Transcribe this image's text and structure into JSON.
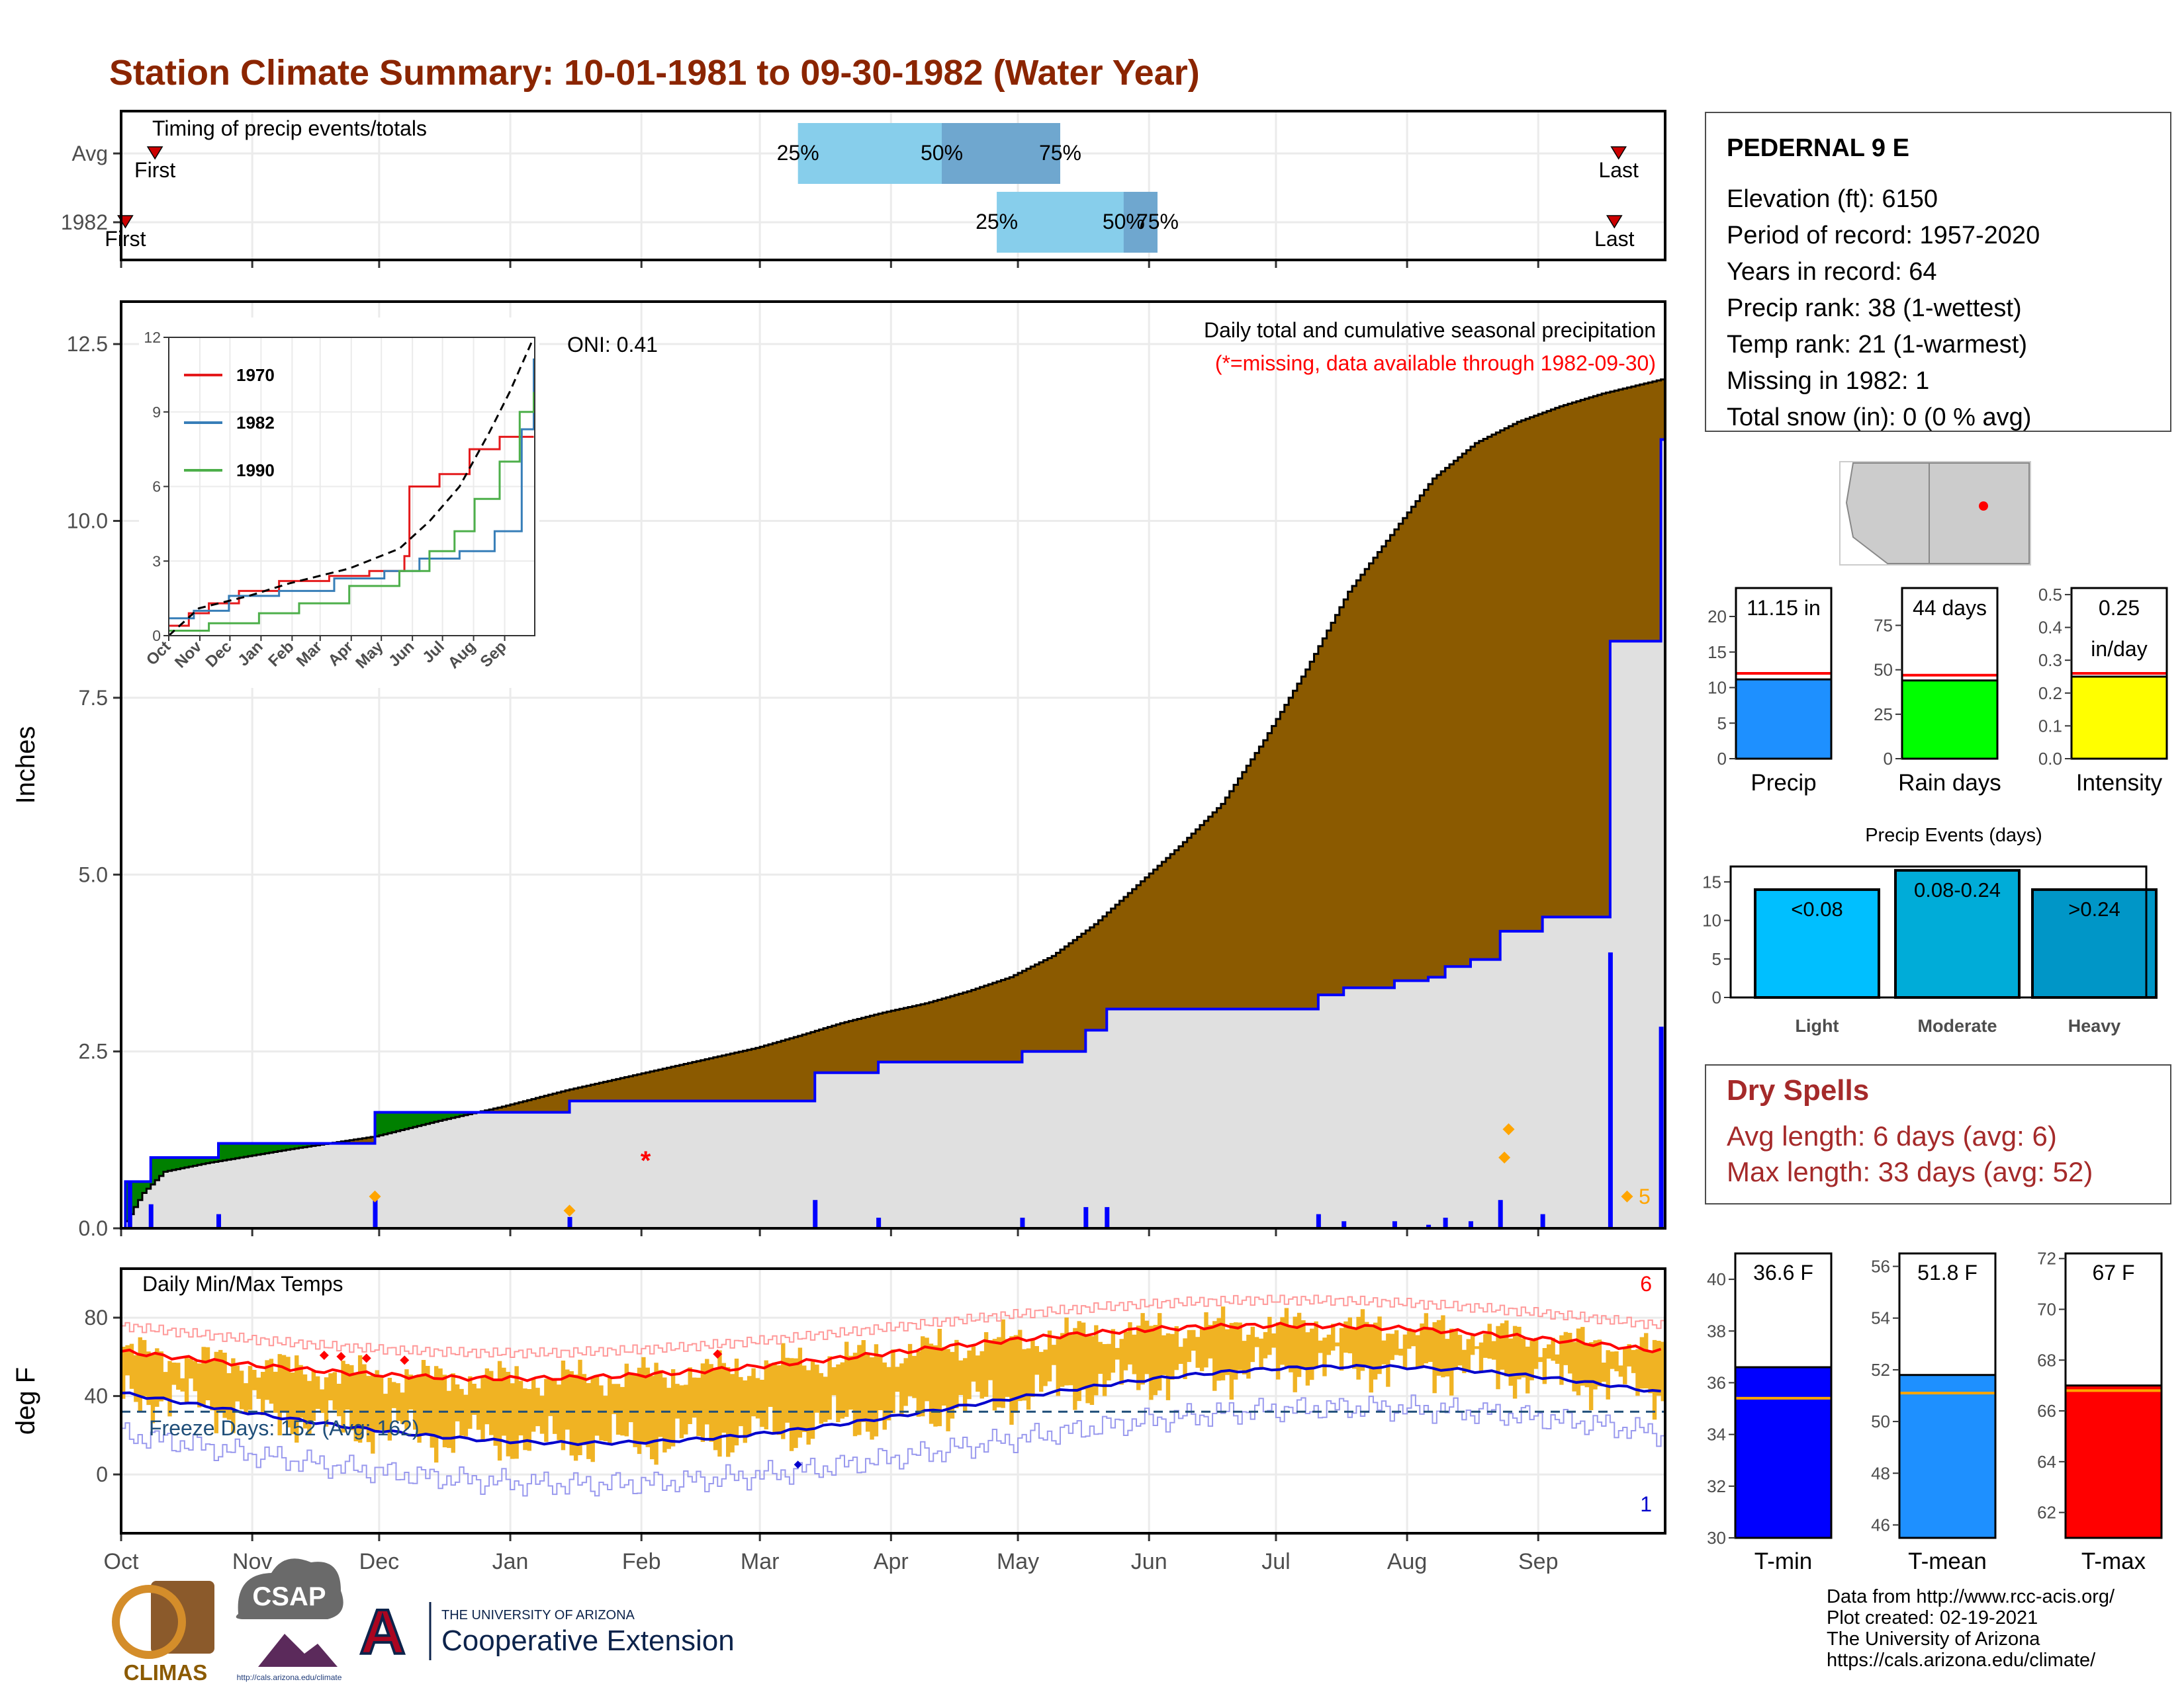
{
  "title": "Station Climate Summary: 10-01-1981 to 09-30-1982 (Water Year)",
  "timing": {
    "label": "Timing of precip events/totals",
    "rows": [
      {
        "name": "Avg",
        "first_doy": 8,
        "q25": 160,
        "q50": 194,
        "q75": 222,
        "last_doy": 354,
        "first_label": "First",
        "last_label": "Last"
      },
      {
        "name": "1982",
        "first_doy": 1,
        "q25": 207,
        "q50": 237,
        "q75": 245,
        "last_doy": 353,
        "first_label": "First",
        "last_label": "Last"
      }
    ],
    "pct_labels": [
      "25%",
      "50%",
      "75%"
    ],
    "colors": {
      "outer": "#87ceeb",
      "inner": "#6fa7cf",
      "marker": "#cc0000"
    }
  },
  "chart_data": {
    "precip": {
      "type": "area",
      "ylabel": "Inches",
      "ylim": [
        0,
        13.1
      ],
      "yticks": [
        0.0,
        2.5,
        5.0,
        7.5,
        10.0,
        12.5
      ],
      "ytick_labels": [
        "0.0",
        "2.5",
        "5.0",
        "7.5",
        "10.0",
        "12.5"
      ],
      "note_main": "Daily total and cumulative seasonal precipitation",
      "note_missing": "(*=missing, data available through 1982-09-30)",
      "missing_marker": {
        "doy": 124,
        "value": 1.0
      },
      "max_label": "5",
      "avg_cumulative": [
        [
          0,
          0
        ],
        [
          5,
          0.5
        ],
        [
          10,
          0.8
        ],
        [
          20,
          0.92
        ],
        [
          30,
          1.02
        ],
        [
          40,
          1.12
        ],
        [
          60,
          1.3
        ],
        [
          75,
          1.52
        ],
        [
          90,
          1.72
        ],
        [
          105,
          1.95
        ],
        [
          120,
          2.15
        ],
        [
          135,
          2.35
        ],
        [
          150,
          2.55
        ],
        [
          160,
          2.72
        ],
        [
          170,
          2.9
        ],
        [
          180,
          3.05
        ],
        [
          190,
          3.18
        ],
        [
          200,
          3.35
        ],
        [
          210,
          3.55
        ],
        [
          220,
          3.85
        ],
        [
          230,
          4.3
        ],
        [
          240,
          4.85
        ],
        [
          250,
          5.4
        ],
        [
          260,
          6.0
        ],
        [
          270,
          6.9
        ],
        [
          280,
          7.9
        ],
        [
          290,
          9.0
        ],
        [
          300,
          9.8
        ],
        [
          310,
          10.6
        ],
        [
          320,
          11.1
        ],
        [
          330,
          11.4
        ],
        [
          340,
          11.62
        ],
        [
          350,
          11.8
        ],
        [
          364,
          12.0
        ]
      ],
      "obs_cumulative": [
        [
          0,
          0
        ],
        [
          1,
          0.66
        ],
        [
          6,
          0.66
        ],
        [
          7,
          1.0
        ],
        [
          22,
          1.0
        ],
        [
          23,
          1.2
        ],
        [
          59,
          1.2
        ],
        [
          60,
          1.64
        ],
        [
          105,
          1.64
        ],
        [
          106,
          1.8
        ],
        [
          163,
          1.8
        ],
        [
          164,
          2.2
        ],
        [
          178,
          2.2
        ],
        [
          179,
          2.35
        ],
        [
          212,
          2.35
        ],
        [
          213,
          2.5
        ],
        [
          227,
          2.5
        ],
        [
          228,
          2.8
        ],
        [
          232,
          2.8
        ],
        [
          233,
          3.1
        ],
        [
          282,
          3.1
        ],
        [
          283,
          3.3
        ],
        [
          288,
          3.3
        ],
        [
          289,
          3.4
        ],
        [
          300,
          3.4
        ],
        [
          301,
          3.5
        ],
        [
          308,
          3.5
        ],
        [
          309,
          3.55
        ],
        [
          312,
          3.55
        ],
        [
          313,
          3.7
        ],
        [
          318,
          3.7
        ],
        [
          319,
          3.8
        ],
        [
          325,
          3.8
        ],
        [
          326,
          4.2
        ],
        [
          335,
          4.2
        ],
        [
          336,
          4.4
        ],
        [
          351,
          4.4
        ],
        [
          352,
          8.3
        ],
        [
          363,
          8.3
        ],
        [
          364,
          11.15
        ]
      ],
      "daily_bars": [
        [
          2,
          0.66
        ],
        [
          7,
          0.34
        ],
        [
          23,
          0.2
        ],
        [
          60,
          0.44
        ],
        [
          106,
          0.16
        ],
        [
          164,
          0.4
        ],
        [
          179,
          0.15
        ],
        [
          213,
          0.15
        ],
        [
          228,
          0.3
        ],
        [
          233,
          0.3
        ],
        [
          283,
          0.2
        ],
        [
          289,
          0.1
        ],
        [
          301,
          0.1
        ],
        [
          309,
          0.05
        ],
        [
          313,
          0.15
        ],
        [
          319,
          0.1
        ],
        [
          326,
          0.4
        ],
        [
          336,
          0.2
        ],
        [
          352,
          3.9
        ],
        [
          364,
          2.85
        ]
      ],
      "daily_max_markers": [
        [
          60,
          0.45
        ],
        [
          106,
          0.25
        ],
        [
          328,
          1.4
        ],
        [
          327,
          1.0
        ],
        [
          356,
          0.45
        ]
      ],
      "colors": {
        "above": "#8b5a00",
        "below": "#008000",
        "obs": "#0000ff",
        "fill": "#e0e0e0",
        "bars": "#0000ff",
        "markers": "#ffa500",
        "missing": "#ff0000"
      }
    },
    "inset": {
      "type": "line",
      "ylim": [
        0,
        12
      ],
      "yticks": [
        0,
        3,
        6,
        9,
        12
      ],
      "month_labels": [
        "Oct",
        "Nov",
        "Dec",
        "Jan",
        "Feb",
        "Mar",
        "Apr",
        "May",
        "Jun",
        "Jul",
        "Aug",
        "Sep"
      ],
      "oni_label": "ONI: 0.41",
      "series": [
        {
          "name": "1970",
          "color": "#e41a1c",
          "points": [
            [
              0,
              0.4
            ],
            [
              20,
              0.9
            ],
            [
              40,
              1.3
            ],
            [
              70,
              1.8
            ],
            [
              110,
              2.2
            ],
            [
              160,
              2.4
            ],
            [
              200,
              2.6
            ],
            [
              235,
              3.2
            ],
            [
              240,
              6.0
            ],
            [
              270,
              6.5
            ],
            [
              300,
              7.5
            ],
            [
              330,
              8.0
            ],
            [
              364,
              8.0
            ]
          ]
        },
        {
          "name": "1982",
          "color": "#377eb8",
          "points": [
            [
              0,
              0.7
            ],
            [
              25,
              1.0
            ],
            [
              60,
              1.6
            ],
            [
              110,
              1.8
            ],
            [
              165,
              2.3
            ],
            [
              215,
              2.6
            ],
            [
              250,
              3.1
            ],
            [
              290,
              3.4
            ],
            [
              325,
              4.2
            ],
            [
              352,
              8.3
            ],
            [
              364,
              11.15
            ]
          ]
        },
        {
          "name": "1990",
          "color": "#4daf4a",
          "points": [
            [
              0,
              0.2
            ],
            [
              40,
              0.5
            ],
            [
              90,
              0.9
            ],
            [
              130,
              1.3
            ],
            [
              180,
              2.0
            ],
            [
              230,
              2.6
            ],
            [
              260,
              3.4
            ],
            [
              285,
              4.2
            ],
            [
              305,
              5.5
            ],
            [
              330,
              7.0
            ],
            [
              350,
              9.0
            ],
            [
              364,
              9.8
            ]
          ]
        }
      ],
      "avg_dashed": [
        [
          0,
          0
        ],
        [
          30,
          1.1
        ],
        [
          80,
          1.6
        ],
        [
          120,
          2.1
        ],
        [
          180,
          2.7
        ],
        [
          230,
          3.5
        ],
        [
          260,
          4.6
        ],
        [
          290,
          6.0
        ],
        [
          320,
          8.2
        ],
        [
          340,
          9.8
        ],
        [
          364,
          12.0
        ]
      ]
    },
    "temps": {
      "type": "line",
      "label": "Daily Min/Max Temps",
      "ylabel": "deg F",
      "ylim": [
        -30,
        105
      ],
      "yticks": [
        0,
        40,
        80
      ],
      "ytick_labels": [
        "0",
        "40",
        "80"
      ],
      "freeze_line": 32,
      "freeze_label": "Freeze Days: 152 (Avg: 162)",
      "record_high_count": "6",
      "record_low_count": "1",
      "colors": {
        "bars": "#f0b323",
        "avg_max": "#ff0000",
        "avg_min": "#0000cc",
        "rec_max": "#ff9999",
        "rec_min": "#9999ee",
        "freeze": "#1f4e79"
      }
    },
    "x_months": {
      "labels": [
        "Oct",
        "Nov",
        "Dec",
        "Jan",
        "Feb",
        "Mar",
        "Apr",
        "May",
        "Jun",
        "Jul",
        "Aug",
        "Sep"
      ],
      "doy": [
        0,
        31,
        61,
        92,
        123,
        151,
        182,
        212,
        243,
        273,
        304,
        335
      ]
    }
  },
  "station": {
    "name": "PEDERNAL 9 E",
    "lines": [
      "Elevation (ft): 6150",
      "Period of record: 1957-2020",
      "Years in record: 64",
      "Precip rank: 38 (1-wettest)",
      "Temp rank: 21 (1-warmest)",
      "Missing in 1982: 1",
      "Total snow (in): 0 (0 % avg)"
    ]
  },
  "mini_bars": [
    {
      "name": "Precip",
      "value_label": "11.15 in",
      "value": 11.15,
      "avg": 12.0,
      "ylim": [
        0,
        24
      ],
      "yticks": [
        0,
        5,
        10,
        15,
        20
      ],
      "color": "#1e90ff"
    },
    {
      "name": "Rain days",
      "value_label": "44 days",
      "value": 44,
      "avg": 47,
      "ylim": [
        0,
        96
      ],
      "yticks": [
        0,
        25,
        50,
        75
      ],
      "color": "#00ff00"
    },
    {
      "name": "Intensity",
      "value_label": "0.25",
      "value_label2": "in/day",
      "value": 0.25,
      "avg": 0.26,
      "ylim": [
        0,
        0.52
      ],
      "yticks": [
        0.0,
        0.1,
        0.2,
        0.3,
        0.4,
        0.5
      ],
      "color": "#ffff00"
    }
  ],
  "events": {
    "title": "Precip Events (days)",
    "ylim": [
      0,
      17
    ],
    "yticks": [
      0,
      5,
      10,
      15
    ],
    "bars": [
      {
        "name": "Light",
        "label": "<0.08",
        "value": 14,
        "color": "#00bfff"
      },
      {
        "name": "Moderate",
        "label": "0.08-0.24",
        "value": 16.5,
        "color": "#00acd8"
      },
      {
        "name": "Heavy",
        "label": ">0.24",
        "value": 14,
        "color": "#0096c7"
      }
    ]
  },
  "dry_spells": {
    "title": "Dry Spells",
    "avg_line": "Avg length: 6 days (avg: 6)",
    "max_line": "Max length: 33 days (avg: 52)",
    "color": "#a52a2a"
  },
  "temp_bars": [
    {
      "name": "T-min",
      "value_label": "36.6 F",
      "value": 36.6,
      "avg": 35.4,
      "ylim": [
        30,
        41
      ],
      "yticks": [
        30,
        32,
        34,
        36,
        38,
        40
      ],
      "color": "#0000ff"
    },
    {
      "name": "T-mean",
      "value_label": "51.8 F",
      "value": 51.8,
      "avg": 51.1,
      "ylim": [
        45.5,
        56.5
      ],
      "yticks": [
        46,
        48,
        50,
        52,
        54,
        56
      ],
      "color": "#1e90ff"
    },
    {
      "name": "T-max",
      "value_label": "67 F",
      "value": 67.0,
      "avg": 66.8,
      "ylim": [
        61,
        72.2
      ],
      "yticks": [
        62,
        64,
        66,
        68,
        70,
        72
      ],
      "color": "#ff0000"
    }
  ],
  "logos": {
    "climas": "CLIMAS",
    "csap": "CSAP",
    "csap_url": "http://cals.arizona.edu/climate",
    "ua_small": "THE UNIVERSITY OF ARIZONA",
    "ua_large": "Cooperative Extension"
  },
  "footer": [
    "Data from http://www.rcc-acis.org/",
    "Plot created: 02-19-2021",
    "The University of Arizona",
    "https://cals.arizona.edu/climate/"
  ]
}
